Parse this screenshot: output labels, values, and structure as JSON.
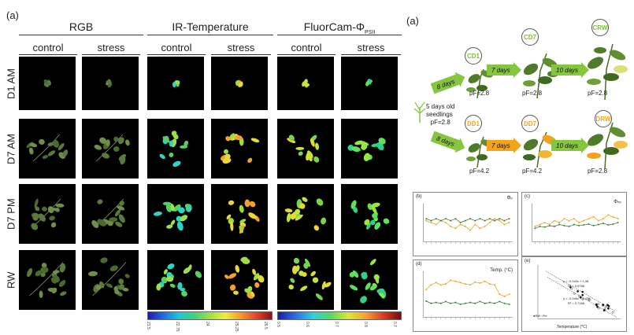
{
  "left_figure": {
    "panel_label": "(a)",
    "groups": [
      {
        "title": "RGB",
        "columns": [
          "control",
          "stress"
        ]
      },
      {
        "title": "IR-Temperature",
        "columns": [
          "control",
          "stress"
        ]
      },
      {
        "title_main": "FluorCam-Φ",
        "title_sub": "PSII",
        "columns": [
          "control",
          "stress"
        ]
      }
    ],
    "rows": [
      "D1 AM",
      "D7 AM",
      "D7 PM",
      "RW"
    ],
    "ir_colorbar_ticks": [
      "21.5",
      "22.75",
      "24",
      "25.25",
      "26.5"
    ],
    "fc_colorbar_ticks": [
      "0.5",
      "0.6",
      "0.7",
      "0.8",
      "0.7"
    ]
  },
  "right_figure": {
    "panel_label": "(a)",
    "stages_control": [
      "CD1",
      "CD7",
      "CRW"
    ],
    "stages_drought": [
      "DD1",
      "DD7",
      "DRW"
    ],
    "arrows": [
      "8 days",
      "7 days",
      "10 days"
    ],
    "pf_control": [
      "pF=2.8",
      "pF=2.8",
      "pF=2.8"
    ],
    "pf_drought": [
      "pF=4.2",
      "pF=4.2",
      "pF=2.8"
    ],
    "seedling_text": [
      "5 days old",
      "seedlings",
      "pF=2.8"
    ],
    "subpanels": {
      "b": {
        "letter": "(b)",
        "symbol": "Φₚ"
      },
      "c": {
        "letter": "(c)",
        "symbol": "Φₙₚ"
      },
      "d": {
        "letter": "(d)",
        "symbol": "Temp. (°C)"
      },
      "e": {
        "letter": "(e)",
        "xlabel": "Temperature (°C)",
        "eq1": "y = -0.043x + 1.38",
        "r1": "R² = 0.6766",
        "eq2": "y = -0.046x + 1.436",
        "r2": "R² = 0.7166",
        "legend": "●RW  ○Pd"
      }
    }
  },
  "colors": {
    "plant_green": "#5e7f3a",
    "control_green": "#86c540",
    "drought_orange": "#f3a31a",
    "series_orange": "#f0a020",
    "series_green": "#3a7d3a"
  }
}
